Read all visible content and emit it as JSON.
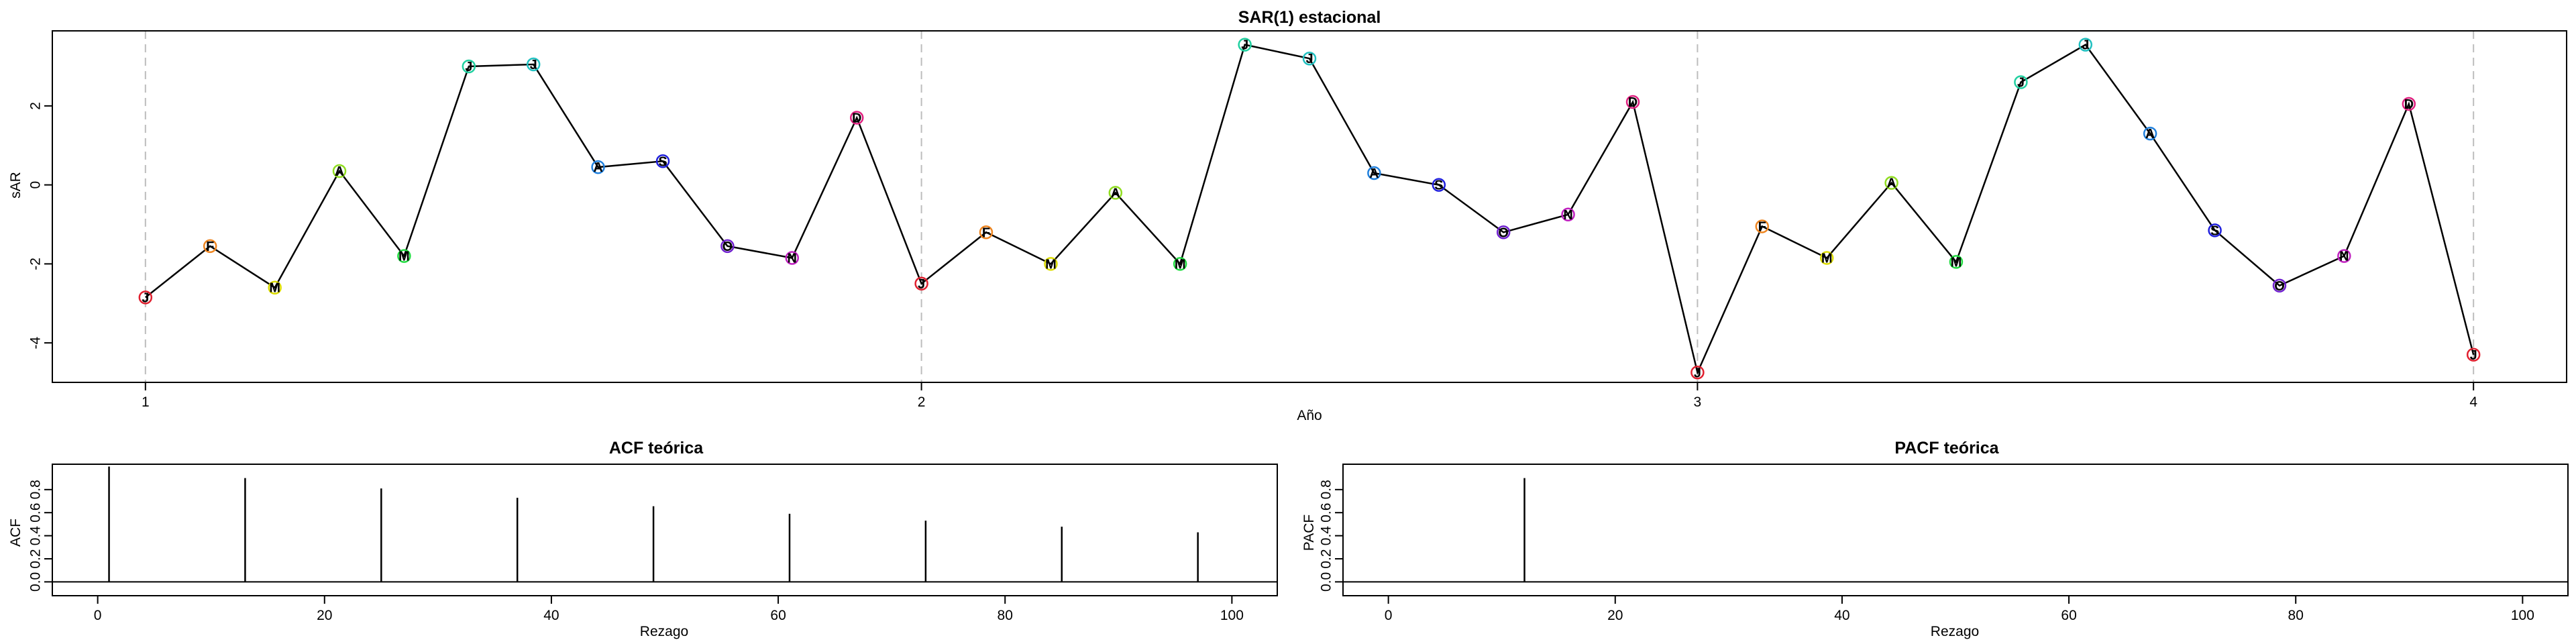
{
  "chart_data": [
    {
      "type": "line",
      "title": "SAR(1) estacional",
      "xlabel": "Año",
      "ylabel": "sAR",
      "xlim": [
        0.88,
        4.12
      ],
      "ylim": [
        -5.0,
        3.9
      ],
      "xticks": [
        1,
        2,
        3,
        4
      ],
      "yticks": [
        -4,
        -2,
        0,
        2
      ],
      "vlines": [
        1,
        2,
        3,
        4
      ],
      "point_symbols": [
        "J",
        "F",
        "M",
        "A",
        "M",
        "J",
        "J",
        "A",
        "S",
        "O",
        "N",
        "D"
      ],
      "point_colors": [
        "#e0202f",
        "#ee8520",
        "#dddd00",
        "#90dd20",
        "#20dd40",
        "#20d0a0",
        "#20c0c0",
        "#2080dd",
        "#2020dd",
        "#7020d0",
        "#c020c0",
        "#e02080"
      ],
      "x": [
        1,
        1.0833,
        1.1667,
        1.25,
        1.3333,
        1.4167,
        1.5,
        1.5833,
        1.6667,
        1.75,
        1.8333,
        1.9167,
        2,
        2.0833,
        2.1667,
        2.25,
        2.3333,
        2.4167,
        2.5,
        2.5833,
        2.6667,
        2.75,
        2.8333,
        2.9167,
        3,
        3.0833,
        3.1667,
        3.25,
        3.3333,
        3.4167,
        3.5,
        3.5833,
        3.6667,
        3.75,
        3.8333,
        3.9167,
        4
      ],
      "values": [
        -2.85,
        -1.55,
        -2.6,
        0.35,
        -1.8,
        3.0,
        3.05,
        0.45,
        0.6,
        -1.55,
        -1.85,
        1.7,
        -2.5,
        -1.2,
        -2.0,
        -0.2,
        -2.0,
        3.55,
        3.2,
        0.3,
        0.0,
        -1.2,
        -0.75,
        2.1,
        -4.75,
        -1.05,
        -1.85,
        0.05,
        -1.95,
        2.6,
        3.55,
        1.3,
        -1.15,
        -2.55,
        -1.8,
        2.05,
        -4.3
      ]
    },
    {
      "type": "bar",
      "title": "ACF teórica",
      "xlabel": "Rezago",
      "ylabel": "ACF",
      "xlim": [
        -4,
        104
      ],
      "ylim": [
        -0.12,
        1.02
      ],
      "xticks": [
        0,
        20,
        40,
        60,
        80,
        100
      ],
      "yticks": [
        0.0,
        0.2,
        0.4,
        0.6,
        0.8
      ],
      "x": [
        1,
        13,
        25,
        37,
        49,
        61,
        73,
        85,
        97
      ],
      "values": [
        1.0,
        0.9,
        0.81,
        0.729,
        0.656,
        0.59,
        0.531,
        0.478,
        0.43
      ]
    },
    {
      "type": "bar",
      "title": "PACF teórica",
      "xlabel": "Rezago",
      "ylabel": "PACF",
      "xlim": [
        -4,
        104
      ],
      "ylim": [
        -0.12,
        1.02
      ],
      "xticks": [
        0,
        20,
        40,
        60,
        80,
        100
      ],
      "yticks": [
        0.0,
        0.2,
        0.4,
        0.6,
        0.8
      ],
      "x": [
        12
      ],
      "values": [
        0.9
      ]
    }
  ]
}
